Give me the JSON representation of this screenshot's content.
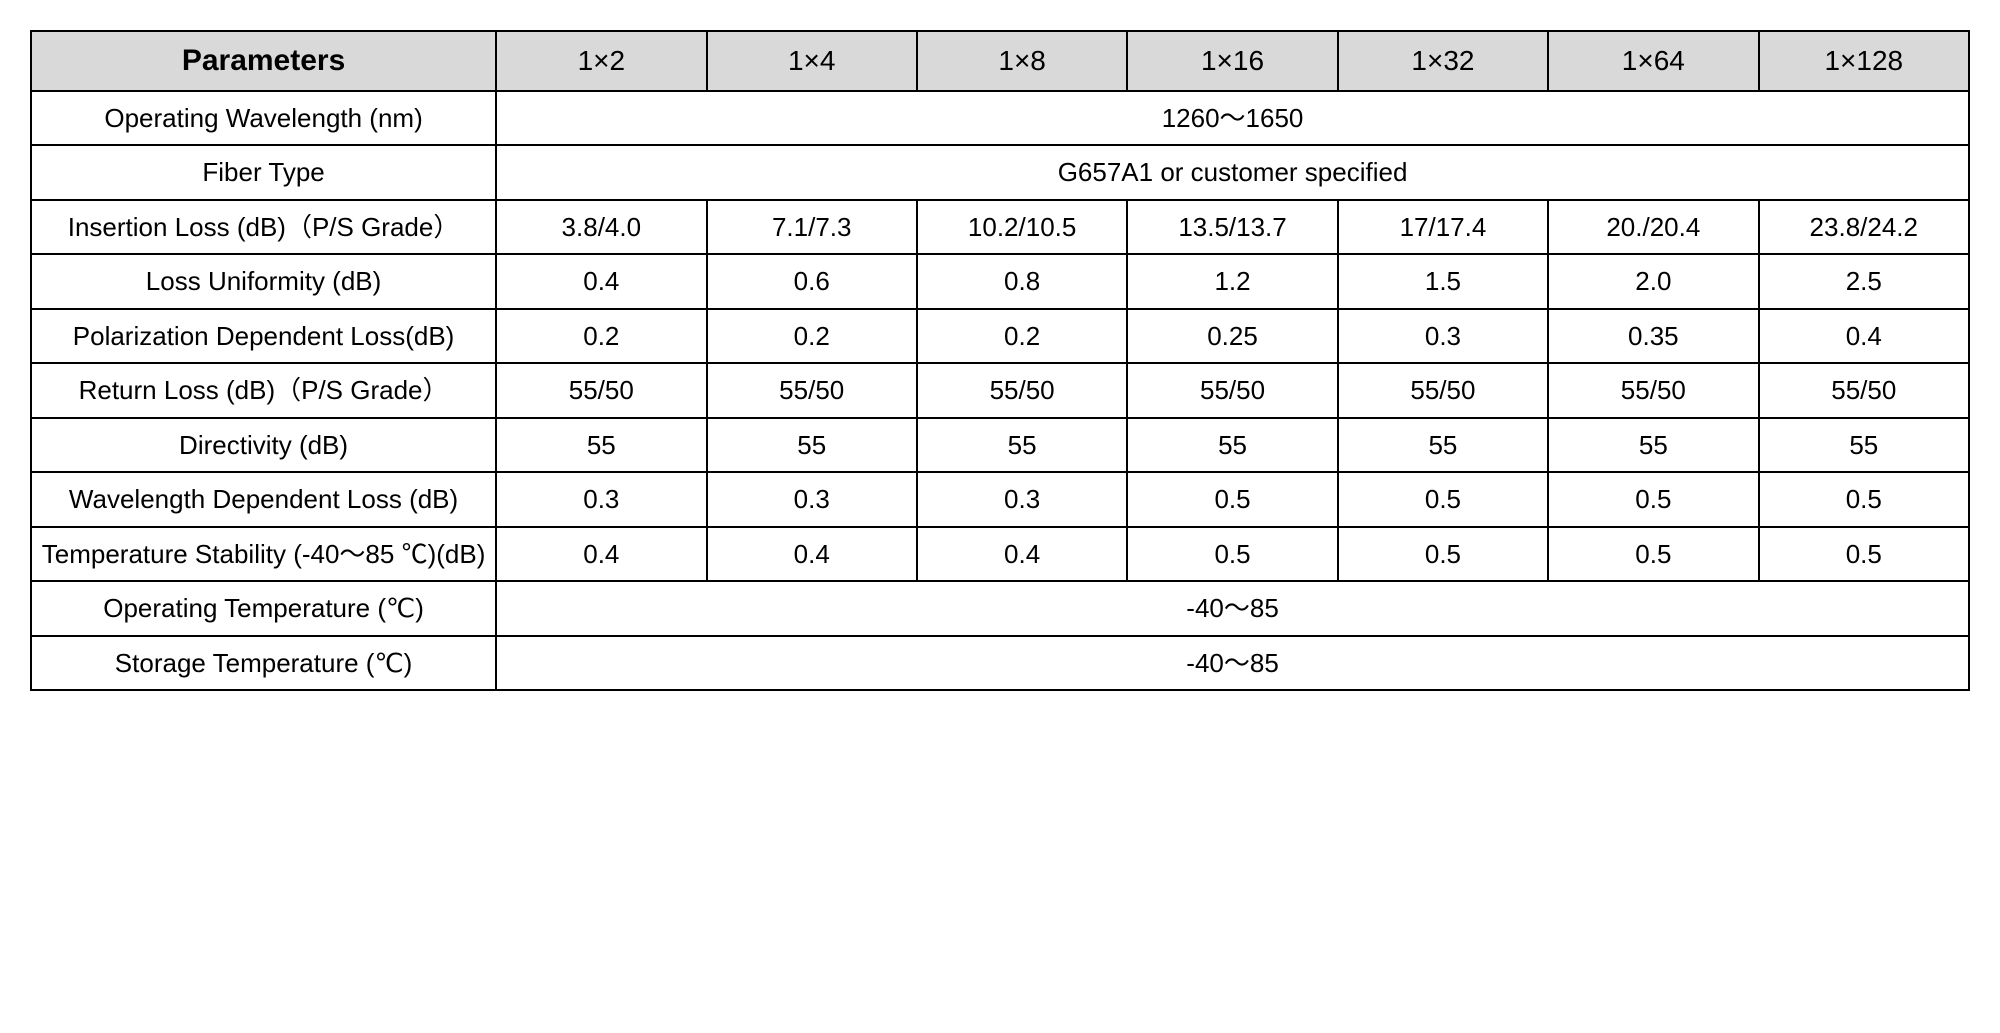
{
  "table": {
    "type": "table",
    "background_color": "#ffffff",
    "border_color": "#000000",
    "border_width": 2,
    "header_bg": "#d9d9d9",
    "font_family": "Arial",
    "header_fontsize": 30,
    "col_header_fontsize": 28,
    "cell_fontsize": 26,
    "first_col_width_pct": 24,
    "columns": {
      "param_header": "Parameters",
      "headers": [
        "1×2",
        "1×4",
        "1×8",
        "1×16",
        "1×32",
        "1×64",
        "1×128"
      ]
    },
    "rows": [
      {
        "label": "Operating Wavelength (nm)",
        "span": true,
        "value": "1260～1650"
      },
      {
        "label": "Fiber Type",
        "span": true,
        "value": "G657A1 or customer specified"
      },
      {
        "label": "Insertion Loss (dB)（P/S Grade）",
        "values": [
          "3.8/4.0",
          "7.1/7.3",
          "10.2/10.5",
          "13.5/13.7",
          "17/17.4",
          "20./20.4",
          "23.8/24.2"
        ]
      },
      {
        "label": "Loss Uniformity   (dB)",
        "values": [
          "0.4",
          "0.6",
          "0.8",
          "1.2",
          "1.5",
          "2.0",
          "2.5"
        ]
      },
      {
        "label": "Polarization Dependent Loss(dB)",
        "values": [
          "0.2",
          "0.2",
          "0.2",
          "0.25",
          "0.3",
          "0.35",
          "0.4"
        ]
      },
      {
        "label": "Return Loss (dB)（P/S Grade）",
        "values": [
          "55/50",
          "55/50",
          "55/50",
          "55/50",
          "55/50",
          "55/50",
          "55/50"
        ]
      },
      {
        "label": "Directivity (dB)",
        "values": [
          "55",
          "55",
          "55",
          "55",
          "55",
          "55",
          "55"
        ]
      },
      {
        "label": "Wavelength Dependent Loss (dB)",
        "values": [
          "0.3",
          "0.3",
          "0.3",
          "0.5",
          "0.5",
          "0.5",
          "0.5"
        ]
      },
      {
        "label": "Temperature Stability (-40～85 ℃)(dB)",
        "values": [
          "0.4",
          "0.4",
          "0.4",
          "0.5",
          "0.5",
          "0.5",
          "0.5"
        ]
      },
      {
        "label": "Operating Temperature (℃)",
        "span": true,
        "value": "-40～85"
      },
      {
        "label": "Storage Temperature (℃)",
        "span": true,
        "value": "-40～85"
      }
    ]
  }
}
